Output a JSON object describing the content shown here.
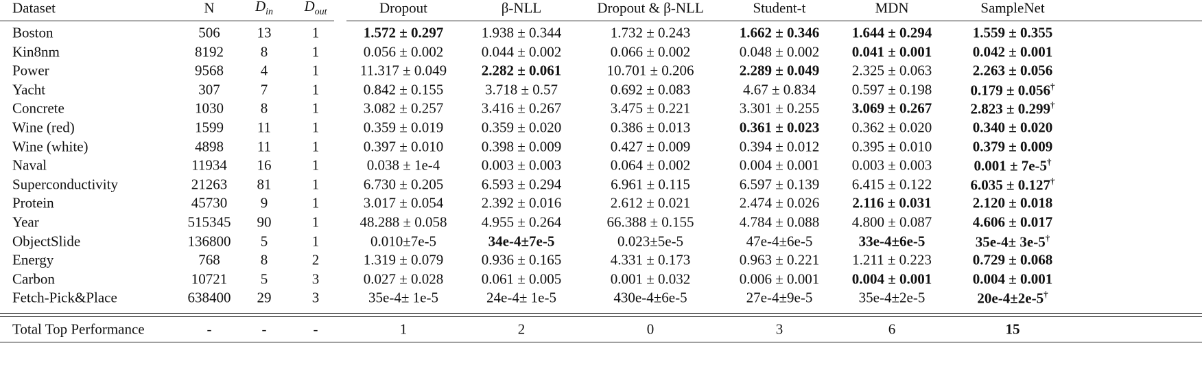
{
  "table": {
    "header": [
      "Dataset",
      "N",
      {
        "text": "D",
        "sub": "in"
      },
      {
        "text": "D",
        "sub": "out"
      },
      "Dropout",
      "β-NLL",
      "Dropout & β-NLL",
      "Student-t",
      "MDN",
      "SampleNet"
    ],
    "rows": [
      [
        "Boston",
        506,
        13,
        1,
        {
          "text": "1.572 ± 0.297",
          "bold": true
        },
        "1.938 ± 0.344",
        "1.732 ± 0.243",
        {
          "text": "1.662 ± 0.346",
          "bold": true
        },
        {
          "text": "1.644 ± 0.294",
          "bold": true
        },
        {
          "text": "1.559 ± 0.355",
          "bold": true
        }
      ],
      [
        "Kin8nm",
        8192,
        8,
        1,
        "0.056 ± 0.002",
        "0.044 ± 0.002",
        "0.066 ± 0.002",
        "0.048 ± 0.002",
        {
          "text": "0.041 ± 0.001",
          "bold": true
        },
        {
          "text": "0.042 ± 0.001",
          "bold": true
        }
      ],
      [
        "Power",
        9568,
        4,
        1,
        "11.317 ± 0.049",
        {
          "text": "2.282 ± 0.061",
          "bold": true
        },
        "10.701 ± 0.206",
        {
          "text": "2.289 ± 0.049",
          "bold": true
        },
        "2.325 ± 0.063",
        {
          "text": "2.263 ± 0.056",
          "bold": true
        }
      ],
      [
        "Yacht",
        307,
        7,
        1,
        "0.842 ± 0.155",
        "3.718 ± 0.57",
        "0.692 ± 0.083",
        "4.67 ± 0.834",
        "0.597 ± 0.198",
        {
          "text": "0.179 ± 0.056",
          "bold": true,
          "note": "†"
        }
      ],
      [
        "Concrete",
        1030,
        8,
        1,
        "3.082 ± 0.257",
        "3.416 ± 0.267",
        "3.475 ± 0.221",
        "3.301 ± 0.255",
        {
          "text": "3.069 ± 0.267",
          "bold": true
        },
        {
          "text": "2.823 ± 0.299",
          "bold": true,
          "note": "†"
        }
      ],
      [
        "Wine (red)",
        1599,
        11,
        1,
        "0.359 ± 0.019",
        "0.359 ± 0.020",
        "0.386 ± 0.013",
        {
          "text": "0.361 ± 0.023",
          "bold": true
        },
        "0.362 ± 0.020",
        {
          "text": "0.340 ± 0.020",
          "bold": true
        }
      ],
      [
        "Wine (white)",
        4898,
        11,
        1,
        "0.397 ± 0.010",
        "0.398 ± 0.009",
        "0.427 ± 0.009",
        "0.394 ± 0.012",
        "0.395 ± 0.010",
        {
          "text": "0.379 ± 0.009",
          "bold": true
        }
      ],
      [
        "Naval",
        11934,
        16,
        1,
        "0.038 ± 1e-4",
        "0.003 ± 0.003",
        "0.064 ± 0.002",
        "0.004 ± 0.001",
        "0.003 ± 0.003",
        {
          "text": "0.001 ± 7e-5",
          "bold": true,
          "note": "†"
        }
      ],
      [
        "Superconductivity",
        21263,
        81,
        1,
        "6.730 ± 0.205",
        "6.593 ± 0.294",
        "6.961 ± 0.115",
        "6.597 ± 0.139",
        "6.415 ± 0.122",
        {
          "text": "6.035 ± 0.127",
          "bold": true,
          "note": "†"
        }
      ],
      [
        "Protein",
        45730,
        9,
        1,
        "3.017 ± 0.054",
        "2.392 ± 0.016",
        "2.612 ± 0.021",
        "2.474 ± 0.026",
        {
          "text": "2.116 ± 0.031",
          "bold": true
        },
        {
          "text": "2.120 ± 0.018",
          "bold": true
        }
      ],
      [
        "Year",
        515345,
        90,
        1,
        "48.288 ± 0.058",
        "4.955 ± 0.264",
        "66.388 ± 0.155",
        "4.784 ± 0.088",
        "4.800 ± 0.087",
        {
          "text": "4.606 ± 0.017",
          "bold": true
        }
      ],
      [
        "ObjectSlide",
        136800,
        5,
        1,
        "0.010±7e-5",
        {
          "text": "34e-4±7e-5",
          "bold": true
        },
        "0.023±5e-5",
        "47e-4±6e-5",
        {
          "text": "33e-4±6e-5",
          "bold": true
        },
        {
          "text": "35e-4± 3e-5",
          "bold": true,
          "note": "†"
        }
      ],
      [
        "Energy",
        768,
        8,
        2,
        "1.319 ± 0.079",
        "0.936 ± 0.165",
        "4.331 ± 0.173",
        "0.963 ± 0.221",
        "1.211 ± 0.223",
        {
          "text": "0.729 ± 0.068",
          "bold": true
        }
      ],
      [
        "Carbon",
        10721,
        5,
        3,
        "0.027 ± 0.028",
        "0.061 ± 0.005",
        "0.001 ± 0.032",
        "0.006 ± 0.001",
        {
          "text": "0.004 ± 0.001",
          "bold": true
        },
        {
          "text": "0.004 ± 0.001",
          "bold": true
        }
      ],
      [
        "Fetch-Pick&Place",
        638400,
        29,
        3,
        "35e-4± 1e-5",
        "24e-4± 1e-5",
        "430e-4±6e-5",
        "27e-4±9e-5",
        "35e-4±2e-5",
        {
          "text": "20e-4±2e-5",
          "bold": true,
          "note": "†"
        }
      ]
    ],
    "footer": [
      "Total Top Performance",
      "-",
      "-",
      "-",
      1,
      2,
      0,
      3,
      6,
      {
        "text": 15,
        "bold": true
      }
    ]
  }
}
